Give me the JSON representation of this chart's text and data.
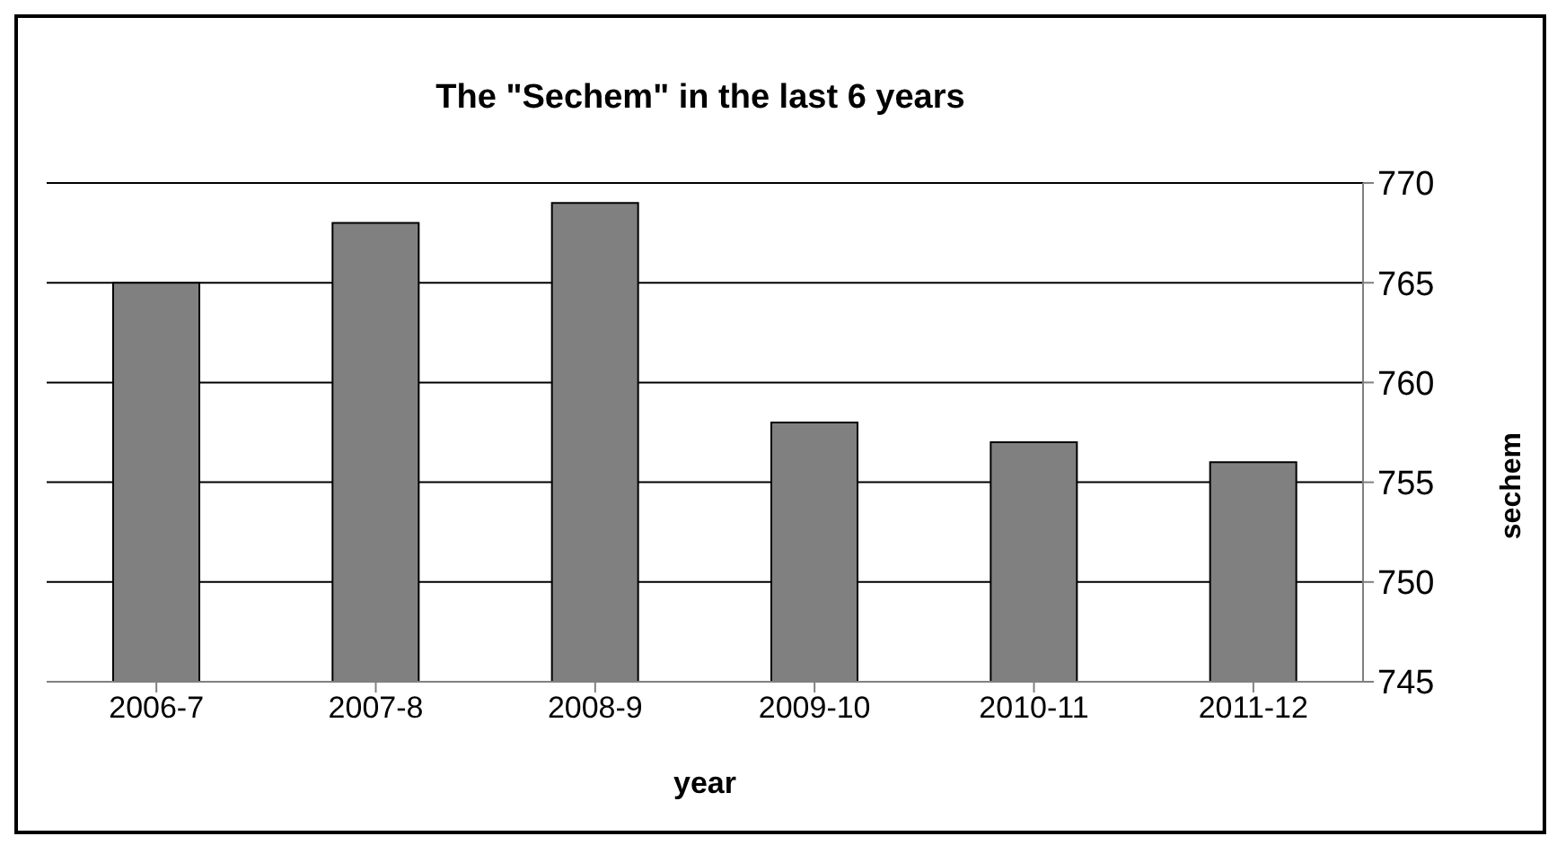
{
  "chart_data": {
    "type": "bar",
    "title": "The \"Sechem\" in the last 6 years",
    "xlabel": "year",
    "ylabel": "sechem",
    "categories": [
      "2006-7",
      "2007-8",
      "2008-9",
      "2009-10",
      "2010-11",
      "2011-12"
    ],
    "values": [
      765,
      768,
      769,
      758,
      757,
      756
    ],
    "color": "#808080",
    "ylim": [
      745,
      770
    ],
    "yticks": [
      745,
      750,
      755,
      760,
      765,
      770
    ],
    "grid": "y",
    "legend": false
  }
}
